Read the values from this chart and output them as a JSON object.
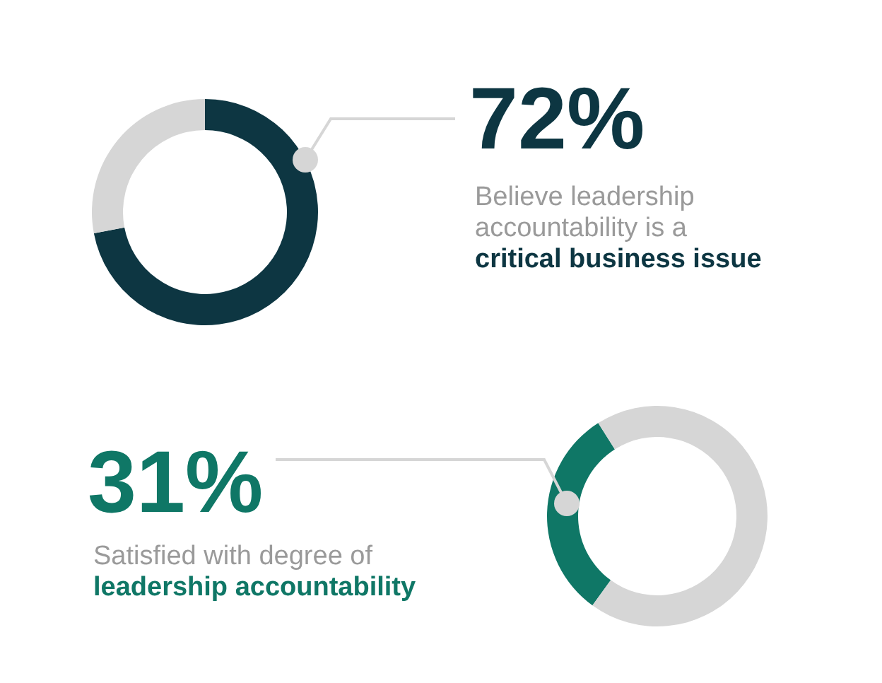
{
  "chart_data": [
    {
      "type": "donut",
      "categories": [
        null,
        null
      ],
      "values": [
        72,
        28
      ],
      "colors": [
        "#0d3642",
        "#d6d6d6"
      ],
      "value_labels": [
        "72%",
        null
      ],
      "annotations": [
        "Believe leadership accountability is a",
        "critical business issue"
      ]
    },
    {
      "type": "donut",
      "categories": [
        null,
        null
      ],
      "values": [
        31,
        69
      ],
      "colors": [
        "#0f7766",
        "#d6d6d6"
      ],
      "value_labels": [
        "31%",
        null
      ],
      "annotations": [
        "Satisfied with degree of",
        "leadership accountability"
      ]
    }
  ]
}
